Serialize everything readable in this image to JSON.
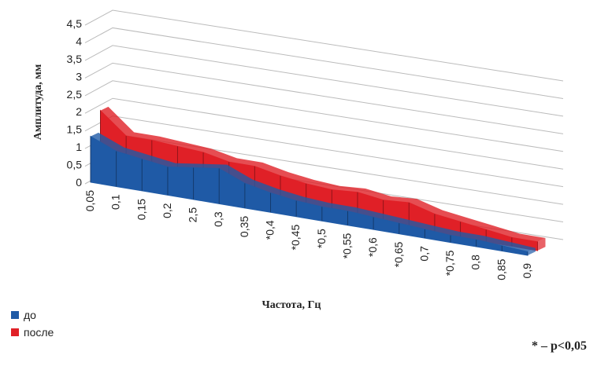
{
  "chart_data": {
    "type": "area3d",
    "y_label": "Амплитуда, мм",
    "x_label": "Частота, Гц",
    "note": "* – р<0,05",
    "categories": [
      "0,05",
      "0,1",
      "0,15",
      "0,2",
      "2,5",
      "0,3",
      "0,35",
      "*0,4",
      "*0,45",
      "*0,5",
      "*0,55",
      "*0,6",
      "*0,65",
      "0,7",
      "*0,75",
      "0,8",
      "0,85",
      "0,9"
    ],
    "series": [
      {
        "name": "до",
        "color": "#1f5aa6",
        "values": [
          1.3,
          1.0,
          0.9,
          0.8,
          0.9,
          1.0,
          0.7,
          0.55,
          0.45,
          0.4,
          0.4,
          0.35,
          0.3,
          0.25,
          0.2,
          0.2,
          0.15,
          0.1
        ]
      },
      {
        "name": "после",
        "color": "#e02027",
        "values": [
          1.9,
          1.3,
          1.3,
          1.25,
          1.2,
          1.05,
          1.05,
          0.9,
          0.8,
          0.75,
          0.8,
          0.7,
          0.75,
          0.55,
          0.45,
          0.35,
          0.25,
          0.25
        ]
      }
    ],
    "ylim": [
      0,
      4.5
    ],
    "yticks": [
      0,
      {
        "value": 0.5,
        "label": "0,5"
      },
      1,
      {
        "value": 1.5,
        "label": "1,5"
      },
      2,
      {
        "value": 2.5,
        "label": "2,5"
      },
      3,
      {
        "value": 3.5,
        "label": "3,5"
      },
      4,
      {
        "value": 4.5,
        "label": "4,5"
      }
    ],
    "grid": true,
    "legend": "bottom-left"
  }
}
